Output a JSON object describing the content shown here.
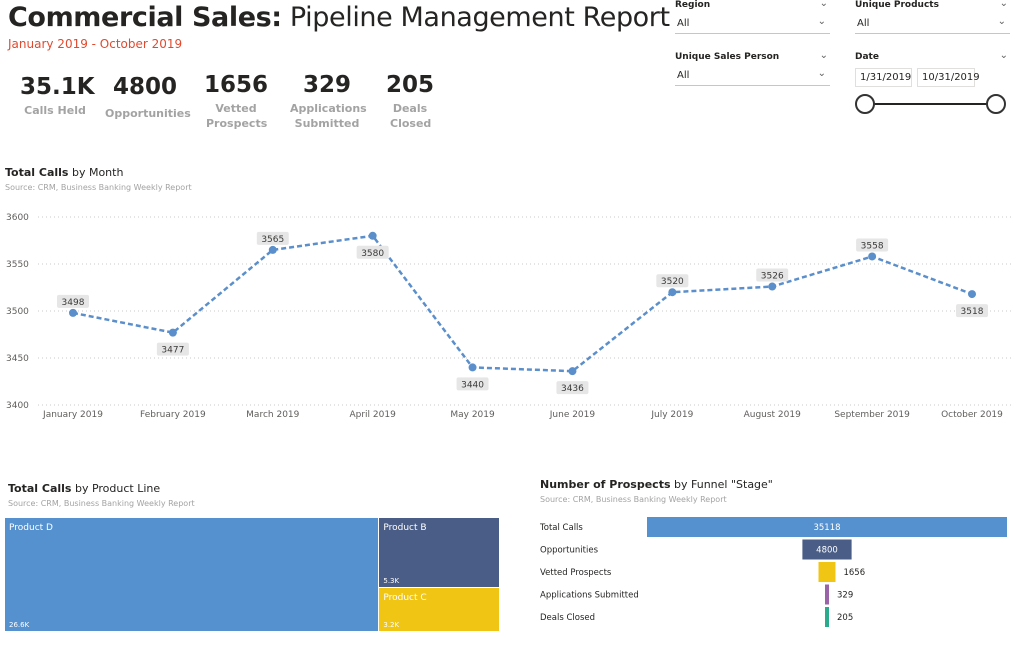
{
  "header": {
    "title_bold": "Commercial Sales:",
    "title_rest": "Pipeline Management Report",
    "date_range": "January 2019 - October 2019"
  },
  "kpis": [
    {
      "value": "35.1K",
      "label": "Calls Held"
    },
    {
      "value": "4800",
      "label": "Opportunities"
    },
    {
      "value": "1656",
      "label": "Vetted Prospects"
    },
    {
      "value": "329",
      "label": "Applications Submitted"
    },
    {
      "value": "205",
      "label": "Deals Closed"
    }
  ],
  "filters": {
    "region": {
      "label": "Region",
      "value": "All"
    },
    "products": {
      "label": "Unique Products",
      "value": "All"
    },
    "sales_person": {
      "label": "Unique Sales Person",
      "value": "All"
    },
    "date": {
      "label": "Date",
      "start": "1/31/2019",
      "end": "10/31/2019"
    }
  },
  "colors": {
    "accent": "#e04a2f",
    "line": "#5b8fcb",
    "productD": "#5590cf",
    "productB": "#4a5d87",
    "productC": "#f0c514",
    "funnel": [
      "#5590cf",
      "#4a5d87",
      "#f0c514",
      "#9a63a8",
      "#2bab8e"
    ]
  },
  "chart_data": [
    {
      "type": "line",
      "title_bold": "Total Calls",
      "title_rest": "by Month",
      "source": "Source: CRM, Business Banking Weekly Report",
      "categories": [
        "January 2019",
        "February 2019",
        "March 2019",
        "April 2019",
        "May 2019",
        "June 2019",
        "July 2019",
        "August 2019",
        "September 2019",
        "October 2019"
      ],
      "values": [
        3498,
        3477,
        3565,
        3580,
        3440,
        3436,
        3520,
        3526,
        3558,
        3518
      ],
      "ylim": [
        3400,
        3600
      ],
      "yticks": [
        3400,
        3450,
        3500,
        3550,
        3600
      ],
      "grid": true
    },
    {
      "type": "treemap",
      "title_bold": "Total Calls",
      "title_rest": "by Product Line",
      "source": "Source: CRM, Business Banking Weekly Report",
      "items": [
        {
          "name": "Product D",
          "value": 26.6,
          "label": "26.6K"
        },
        {
          "name": "Product B",
          "value": 5.3,
          "label": "5.3K"
        },
        {
          "name": "Product C",
          "value": 3.2,
          "label": "3.2K"
        }
      ]
    },
    {
      "type": "bar",
      "orientation": "funnel",
      "title_bold": "Number of Prospects",
      "title_rest": "by Funnel \"Stage\"",
      "source": "Source: CRM, Business Banking Weekly Report",
      "categories": [
        "Total Calls",
        "Opportunities",
        "Vetted Prospects",
        "Applications Submitted",
        "Deals Closed"
      ],
      "values": [
        35118,
        4800,
        1656,
        329,
        205
      ]
    }
  ]
}
